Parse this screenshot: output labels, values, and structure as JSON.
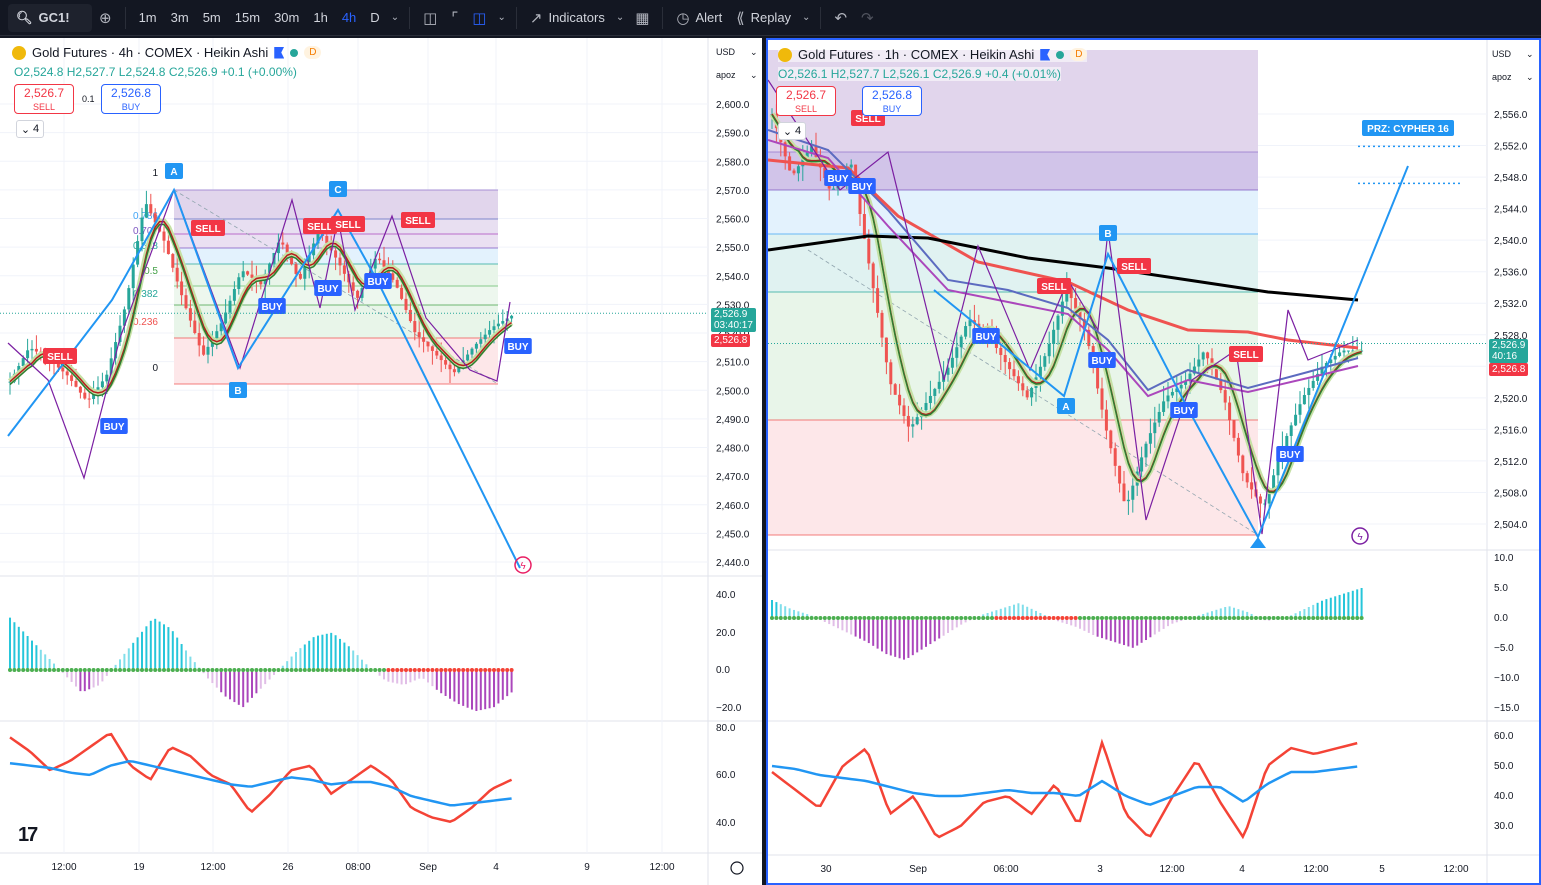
{
  "toolbar": {
    "symbol": "GC1!",
    "intervals": [
      "1m",
      "3m",
      "5m",
      "15m",
      "30m",
      "1h",
      "4h",
      "D"
    ],
    "active_interval": "4h",
    "indicators_label": "Indicators",
    "alert_label": "Alert",
    "replay_label": "Replay"
  },
  "left_chart": {
    "title": "Gold Futures · 4h · COMEX · Heikin Ashi",
    "d_badge": "D",
    "ohlc": {
      "o": "O2,524.8",
      "h": "H2,527.7",
      "l": "L2,524.8",
      "c": "C2,526.9",
      "chg": "+0.1 (+0.00%)"
    },
    "sell_price": "2,526.7",
    "sell_label": "SELL",
    "buy_price": "2,526.8",
    "buy_label": "BUY",
    "spread": "0.1",
    "collapse_count": "4",
    "currency": "USD",
    "scale": "apoz",
    "price_ticks": [
      "2,600.0",
      "2,590.0",
      "2,580.0",
      "2,570.0",
      "2,560.0",
      "2,550.0",
      "2,540.0",
      "2,530.0",
      "2,520.0",
      "2,510.0",
      "2,500.0",
      "2,490.0",
      "2,480.0",
      "2,470.0",
      "2,460.0",
      "2,450.0",
      "2,440.0"
    ],
    "last_price": "2,526.9",
    "countdown": "03:40:17",
    "bid_price": "2,526.8",
    "osc_ticks": [
      "40.0",
      "20.0",
      "0.0",
      "−20.0"
    ],
    "rsi_ticks": [
      "80.0",
      "60.0",
      "40.0"
    ],
    "time_ticks": [
      "12:00",
      "19",
      "12:00",
      "26",
      "08:00",
      "Sep",
      "4",
      "9",
      "12:00"
    ],
    "fib_labels": [
      "1",
      "0.786",
      "0.707",
      "0.618",
      "0.5",
      "0.382",
      "0.236",
      "0"
    ],
    "pattern_points": [
      "A",
      "B",
      "C"
    ],
    "signals": {
      "sell": "SELL",
      "buy": "BUY"
    }
  },
  "right_chart": {
    "title": "Gold Futures · 1h · COMEX · Heikin Ashi",
    "d_badge": "D",
    "ohlc": {
      "o": "O2,526.1",
      "h": "H2,527.7",
      "l": "L2,526.1",
      "c": "C2,526.9",
      "chg": "+0.4 (+0.01%)"
    },
    "sell_price": "2,526.7",
    "sell_label": "SELL",
    "buy_price": "2,526.8",
    "buy_label": "BUY",
    "collapse_count": "4",
    "currency": "USD",
    "scale": "apoz",
    "price_ticks": [
      "2,556.0",
      "2,552.0",
      "2,548.0",
      "2,544.0",
      "2,540.0",
      "2,536.0",
      "2,532.0",
      "2,528.0",
      "2,524.0",
      "2,520.0",
      "2,516.0",
      "2,512.0",
      "2,508.0",
      "2,504.0"
    ],
    "last_price": "2,526.9",
    "countdown": "40:16",
    "bid_price": "2,526.8",
    "osc_ticks": [
      "10.0",
      "5.0",
      "0.0",
      "−5.0",
      "−10.0",
      "−15.0"
    ],
    "rsi_ticks": [
      "60.0",
      "50.0",
      "40.0",
      "30.0"
    ],
    "time_ticks": [
      "30",
      "Sep",
      "06:00",
      "3",
      "12:00",
      "4",
      "12:00",
      "5",
      "12:00"
    ],
    "prz_label": "PRZ: CYPHER 16",
    "pattern_points": [
      "A",
      "B"
    ],
    "signals": {
      "sell": "SELL",
      "buy": "BUY"
    }
  },
  "colors": {
    "buy": "#2962ff",
    "sell": "#f23645",
    "pattern": "#2196f3",
    "up": "#26a69a",
    "down": "#ef5350"
  }
}
